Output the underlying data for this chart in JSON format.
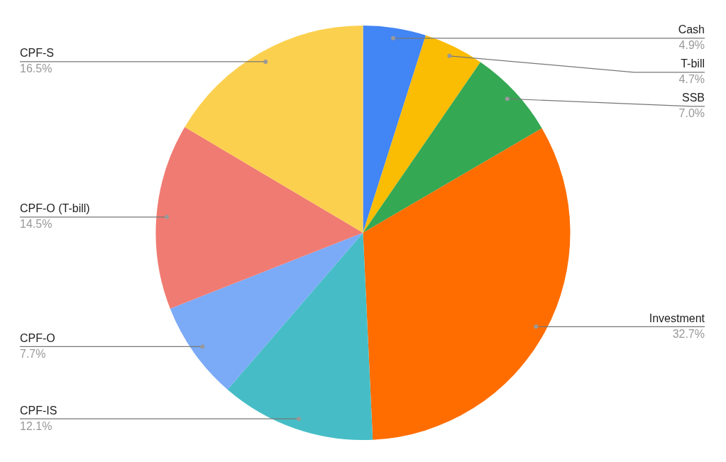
{
  "chart_data": {
    "type": "pie",
    "categories": [
      "Cash",
      "T-bill",
      "SSB",
      "Investment",
      "CPF-IS",
      "CPF-O",
      "CPF-O (T-bill)",
      "CPF-S"
    ],
    "values": [
      4.9,
      4.7,
      7.0,
      32.7,
      12.1,
      7.7,
      14.5,
      16.5
    ],
    "value_labels": [
      "4.9%",
      "4.7%",
      "7.0%",
      "32.7%",
      "12.1%",
      "7.7%",
      "14.5%",
      "16.5%"
    ],
    "colors": [
      "#4285f4",
      "#fbbc04",
      "#34a853",
      "#ff6d01",
      "#46bdc6",
      "#7baaf7",
      "#f07b72",
      "#fcd04f"
    ],
    "legend": false
  }
}
